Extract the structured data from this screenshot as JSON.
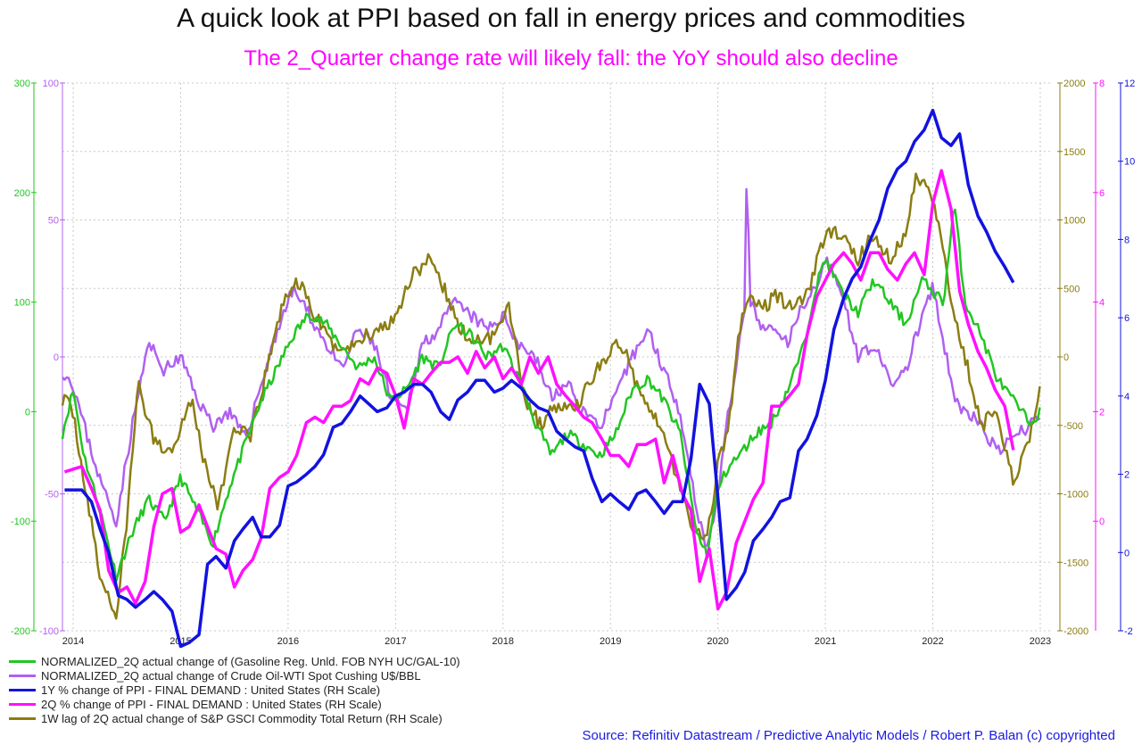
{
  "title": "A quick look at PPI based on fall in energy prices and commodities",
  "subtitle": "The 2_Quarter change rate will likely fall: the YoY should also decline",
  "source": "Source: Refinitiv Datastream / Predictive Analytic Models / Robert P. Balan (c) copyrighted",
  "colors": {
    "subtitle": "#ff00ff",
    "gasoline": "#22c622",
    "crude": "#b060f0",
    "ppi_1y": "#1212e0",
    "ppi_2q": "#ff10ff",
    "gsci": "#8b7d12",
    "grid": "#c8c8c8"
  },
  "chart_data": {
    "type": "line",
    "x_ticks": [
      "2014",
      "2015",
      "2016",
      "2017",
      "2018",
      "2019",
      "2020",
      "2021",
      "2022",
      "2023"
    ],
    "axes": {
      "left_gasoline": {
        "color": "#22c622",
        "ticks": [
          "300",
          "200",
          "100",
          "0",
          "-100",
          "-200"
        ],
        "range": [
          -200,
          300
        ]
      },
      "left_crude": {
        "color": "#b060f0",
        "ticks": [
          "100",
          "50",
          "0",
          "-50",
          "-100"
        ],
        "range": [
          -100,
          100
        ]
      },
      "right_gsci": {
        "color": "#8b7d12",
        "ticks": [
          "2000",
          "1500",
          "1000",
          "500",
          "0",
          "-500",
          "-1000",
          "-1500",
          "-2000"
        ],
        "range": [
          -2000,
          2000
        ]
      },
      "right_ppi_2q": {
        "color": "#ff10ff",
        "ticks": [
          "8",
          "6",
          "4",
          "2",
          "0"
        ],
        "range": [
          -2,
          8
        ]
      },
      "right_ppi_1y": {
        "color": "#1212e0",
        "ticks": [
          "12",
          "10",
          "8",
          "6",
          "4",
          "2",
          "0",
          "-2"
        ],
        "range": [
          -2,
          12
        ]
      }
    },
    "series": [
      {
        "name": "NORMALIZED_2Q actual change of (Gasoline Reg. Unld. FOB NYH UC/GAL-10)",
        "axis": "left_gasoline",
        "color": "#22c622",
        "width": 2.5,
        "noise": 5,
        "seed": 11,
        "x": [
          2013.9,
          2014.0,
          2014.1,
          2014.25,
          2014.4,
          2014.55,
          2014.7,
          2014.85,
          2015.0,
          2015.15,
          2015.3,
          2015.45,
          2015.6,
          2015.75,
          2015.9,
          2016.05,
          2016.2,
          2016.35,
          2016.5,
          2016.65,
          2016.8,
          2016.95,
          2017.1,
          2017.25,
          2017.4,
          2017.55,
          2017.7,
          2017.85,
          2018.0,
          2018.15,
          2018.3,
          2018.45,
          2018.6,
          2018.75,
          2018.9,
          2019.05,
          2019.2,
          2019.35,
          2019.5,
          2019.65,
          2019.8,
          2019.9,
          2020.0,
          2020.1,
          2020.2,
          2020.35,
          2020.5,
          2020.65,
          2020.8,
          2020.9,
          2021.0,
          2021.15,
          2021.3,
          2021.45,
          2021.6,
          2021.75,
          2021.9,
          2022.0,
          2022.1,
          2022.2,
          2022.3,
          2022.45,
          2022.6,
          2022.75,
          2022.9,
          2023.0
        ],
        "y": [
          -20,
          20,
          -40,
          -90,
          -150,
          -110,
          -80,
          -100,
          -60,
          -90,
          -120,
          -70,
          -30,
          10,
          40,
          70,
          90,
          80,
          60,
          40,
          50,
          10,
          20,
          50,
          40,
          80,
          70,
          50,
          60,
          30,
          -10,
          -40,
          -20,
          -30,
          -40,
          -20,
          20,
          30,
          10,
          -20,
          -110,
          -130,
          -70,
          -50,
          -40,
          -20,
          -10,
          20,
          60,
          110,
          140,
          110,
          90,
          120,
          100,
          80,
          120,
          110,
          100,
          190,
          100,
          70,
          30,
          10,
          -10,
          0
        ]
      },
      {
        "name": "NORMALIZED_2Q actual change of Crude Oil-WTI Spot Cushing U$/BBL",
        "axis": "left_crude",
        "color": "#b060f0",
        "width": 2.5,
        "noise": 2.5,
        "seed": 23,
        "x": [
          2013.9,
          2014.0,
          2014.1,
          2014.25,
          2014.4,
          2014.55,
          2014.7,
          2014.85,
          2015.0,
          2015.15,
          2015.3,
          2015.45,
          2015.6,
          2015.75,
          2015.9,
          2016.05,
          2016.2,
          2016.35,
          2016.5,
          2016.65,
          2016.8,
          2016.95,
          2017.1,
          2017.25,
          2017.4,
          2017.55,
          2017.7,
          2017.85,
          2018.0,
          2018.15,
          2018.3,
          2018.45,
          2018.6,
          2018.75,
          2018.9,
          2019.05,
          2019.2,
          2019.35,
          2019.5,
          2019.65,
          2019.8,
          2019.9,
          2020.0,
          2020.1,
          2020.2,
          2020.25,
          2020.27,
          2020.3,
          2020.4,
          2020.5,
          2020.65,
          2020.8,
          2020.9,
          2021.0,
          2021.15,
          2021.3,
          2021.45,
          2021.6,
          2021.75,
          2021.9,
          2022.0,
          2022.1,
          2022.2,
          2022.3,
          2022.45,
          2022.6,
          2022.75,
          2022.9,
          2023.0
        ],
        "y": [
          -5,
          -10,
          -25,
          -45,
          -60,
          -25,
          5,
          -5,
          0,
          -15,
          -25,
          -20,
          -30,
          -10,
          10,
          25,
          15,
          5,
          -5,
          10,
          5,
          -15,
          -20,
          5,
          10,
          20,
          15,
          10,
          15,
          5,
          0,
          -15,
          -10,
          -20,
          -25,
          -15,
          0,
          10,
          -5,
          -20,
          -55,
          -70,
          -50,
          -20,
          5,
          15,
          75,
          20,
          10,
          10,
          5,
          20,
          25,
          35,
          25,
          0,
          5,
          -10,
          -5,
          15,
          25,
          5,
          -15,
          -20,
          -25,
          -35,
          -30,
          -25,
          -20
        ]
      },
      {
        "name": "1Y % change of PPI - FINAL DEMAND : United States (RH Scale)",
        "axis": "right_ppi_1y",
        "color": "#1212e0",
        "width": 3.5,
        "noise": 0,
        "seed": 0,
        "x": [
          2013.92,
          2014.08,
          2014.17,
          2014.25,
          2014.33,
          2014.42,
          2014.5,
          2014.58,
          2014.67,
          2014.75,
          2014.83,
          2014.92,
          2015.0,
          2015.08,
          2015.17,
          2015.25,
          2015.33,
          2015.42,
          2015.5,
          2015.58,
          2015.67,
          2015.75,
          2015.83,
          2015.92,
          2016.0,
          2016.08,
          2016.17,
          2016.25,
          2016.33,
          2016.42,
          2016.5,
          2016.58,
          2016.67,
          2016.75,
          2016.83,
          2016.92,
          2017.0,
          2017.08,
          2017.17,
          2017.25,
          2017.33,
          2017.42,
          2017.5,
          2017.58,
          2017.67,
          2017.75,
          2017.83,
          2017.92,
          2018.0,
          2018.08,
          2018.17,
          2018.25,
          2018.33,
          2018.42,
          2018.5,
          2018.58,
          2018.67,
          2018.75,
          2018.83,
          2018.92,
          2019.0,
          2019.08,
          2019.17,
          2019.25,
          2019.33,
          2019.42,
          2019.5,
          2019.58,
          2019.67,
          2019.75,
          2019.83,
          2019.92,
          2020.0,
          2020.08,
          2020.17,
          2020.25,
          2020.33,
          2020.42,
          2020.5,
          2020.58,
          2020.67,
          2020.75,
          2020.83,
          2020.92,
          2021.0,
          2021.08,
          2021.17,
          2021.25,
          2021.33,
          2021.42,
          2021.5,
          2021.58,
          2021.67,
          2021.75,
          2021.83,
          2021.92,
          2022.0,
          2022.08,
          2022.17,
          2022.25,
          2022.33,
          2022.42,
          2022.5,
          2022.58,
          2022.67,
          2022.75
        ],
        "y": [
          1.6,
          1.6,
          1.3,
          0.6,
          0.0,
          -1.1,
          -1.2,
          -1.4,
          -1.2,
          -1.0,
          -1.2,
          -1.5,
          -2.4,
          -2.3,
          -2.1,
          -0.3,
          -0.1,
          -0.4,
          0.3,
          0.6,
          0.9,
          0.4,
          0.4,
          0.7,
          1.7,
          1.8,
          2.0,
          2.2,
          2.5,
          3.2,
          3.3,
          3.6,
          4.0,
          3.8,
          3.6,
          3.7,
          4.0,
          4.1,
          4.3,
          4.3,
          4.1,
          3.6,
          3.4,
          3.9,
          4.1,
          4.4,
          4.4,
          4.1,
          4.2,
          4.4,
          4.2,
          3.9,
          3.7,
          3.6,
          3.1,
          2.9,
          2.7,
          2.6,
          1.9,
          1.3,
          1.5,
          1.3,
          1.1,
          1.5,
          1.6,
          1.3,
          1.0,
          1.3,
          1.3,
          2.4,
          4.3,
          3.8,
          1.4,
          -1.2,
          -0.9,
          -0.5,
          0.3,
          0.6,
          0.9,
          1.3,
          1.4,
          2.6,
          2.9,
          3.5,
          4.4,
          5.7,
          6.5,
          7.0,
          7.3,
          8.0,
          8.5,
          9.3,
          9.8,
          10.0,
          10.5,
          10.8,
          11.3,
          10.6,
          10.4,
          10.7,
          9.4,
          8.6,
          8.2,
          7.7,
          7.3,
          6.9
        ]
      },
      {
        "name": "2Q % change of PPI - FINAL DEMAND : United States (RH Scale)",
        "axis": "right_ppi_2q",
        "color": "#ff10ff",
        "width": 3.5,
        "noise": 0,
        "seed": 0,
        "x": [
          2013.92,
          2014.08,
          2014.17,
          2014.25,
          2014.33,
          2014.42,
          2014.5,
          2014.58,
          2014.67,
          2014.75,
          2014.83,
          2014.92,
          2015.0,
          2015.08,
          2015.17,
          2015.25,
          2015.33,
          2015.42,
          2015.5,
          2015.58,
          2015.67,
          2015.75,
          2015.83,
          2015.92,
          2016.0,
          2016.08,
          2016.17,
          2016.25,
          2016.33,
          2016.42,
          2016.5,
          2016.58,
          2016.67,
          2016.75,
          2016.83,
          2016.92,
          2017.0,
          2017.08,
          2017.17,
          2017.25,
          2017.33,
          2017.42,
          2017.5,
          2017.58,
          2017.67,
          2017.75,
          2017.83,
          2017.92,
          2018.0,
          2018.08,
          2018.17,
          2018.25,
          2018.33,
          2018.42,
          2018.5,
          2018.58,
          2018.67,
          2018.75,
          2018.83,
          2018.92,
          2019.0,
          2019.08,
          2019.17,
          2019.25,
          2019.33,
          2019.42,
          2019.5,
          2019.58,
          2019.67,
          2019.75,
          2019.83,
          2019.92,
          2020.0,
          2020.08,
          2020.17,
          2020.25,
          2020.33,
          2020.42,
          2020.5,
          2020.58,
          2020.67,
          2020.75,
          2020.83,
          2020.92,
          2021.0,
          2021.08,
          2021.17,
          2021.25,
          2021.33,
          2021.42,
          2021.5,
          2021.58,
          2021.67,
          2021.75,
          2021.83,
          2021.92,
          2022.0,
          2022.08,
          2022.17,
          2022.25,
          2022.33,
          2022.42,
          2022.5,
          2022.58,
          2022.67,
          2022.75
        ],
        "y": [
          0.9,
          1.0,
          0.6,
          0.2,
          -0.9,
          -1.3,
          -1.2,
          -1.5,
          -1.1,
          -0.1,
          0.5,
          0.6,
          -0.2,
          -0.1,
          0.3,
          -0.1,
          -0.5,
          -0.6,
          -1.2,
          -0.9,
          -0.7,
          -0.3,
          0.6,
          0.8,
          0.9,
          1.2,
          1.8,
          1.9,
          1.8,
          2.1,
          2.1,
          2.2,
          2.6,
          2.5,
          2.8,
          2.7,
          2.3,
          1.7,
          2.6,
          2.5,
          2.7,
          2.9,
          2.9,
          3.0,
          2.7,
          3.1,
          2.8,
          3.0,
          2.6,
          2.8,
          2.5,
          3.0,
          2.7,
          3.0,
          2.5,
          2.3,
          2.1,
          1.9,
          1.8,
          1.5,
          1.2,
          1.2,
          1.0,
          1.4,
          1.4,
          1.5,
          0.7,
          1.2,
          0.5,
          0.2,
          -1.1,
          -0.5,
          -1.6,
          -1.3,
          -0.4,
          0.0,
          0.4,
          0.7,
          2.1,
          2.1,
          2.3,
          2.5,
          3.4,
          4.1,
          4.4,
          4.7,
          4.9,
          4.7,
          4.4,
          4.9,
          4.9,
          4.6,
          4.4,
          4.7,
          4.9,
          4.5,
          5.8,
          6.4,
          5.7,
          4.2,
          3.6,
          3.1,
          2.8,
          2.4,
          2.1,
          1.3
        ]
      },
      {
        "name": "1W lag of 2Q actual change of S&P GSCI Commodity Total Return (RH Scale)",
        "axis": "right_gsci",
        "color": "#8b7d12",
        "width": 2.5,
        "noise": 55,
        "seed": 37,
        "x": [
          2013.9,
          2014.0,
          2014.1,
          2014.25,
          2014.4,
          2014.5,
          2014.6,
          2014.75,
          2014.9,
          2015.0,
          2015.1,
          2015.2,
          2015.35,
          2015.5,
          2015.65,
          2015.8,
          2015.95,
          2016.1,
          2016.25,
          2016.4,
          2016.55,
          2016.7,
          2016.85,
          2017.0,
          2017.15,
          2017.3,
          2017.45,
          2017.6,
          2017.75,
          2017.9,
          2018.05,
          2018.2,
          2018.35,
          2018.5,
          2018.65,
          2018.8,
          2018.95,
          2019.1,
          2019.25,
          2019.4,
          2019.55,
          2019.7,
          2019.8,
          2019.9,
          2020.0,
          2020.1,
          2020.2,
          2020.3,
          2020.4,
          2020.55,
          2020.7,
          2020.85,
          2021.0,
          2021.15,
          2021.3,
          2021.45,
          2021.6,
          2021.75,
          2021.85,
          2021.95,
          2022.05,
          2022.15,
          2022.3,
          2022.45,
          2022.6,
          2022.75,
          2022.9,
          2023.0
        ],
        "y": [
          -300,
          -400,
          -900,
          -1600,
          -1900,
          -1200,
          -200,
          -600,
          -700,
          -500,
          -300,
          -700,
          -1100,
          -500,
          -600,
          -100,
          400,
          550,
          300,
          100,
          50,
          150,
          200,
          300,
          600,
          700,
          500,
          200,
          100,
          150,
          400,
          -300,
          -500,
          -350,
          -400,
          -200,
          0,
          100,
          -200,
          -400,
          -700,
          -1100,
          -1300,
          -1300,
          -800,
          -500,
          200,
          450,
          350,
          450,
          350,
          500,
          900,
          900,
          700,
          900,
          700,
          900,
          1350,
          1200,
          1000,
          500,
          0,
          -500,
          -400,
          -900,
          -600,
          -200
        ]
      }
    ]
  }
}
